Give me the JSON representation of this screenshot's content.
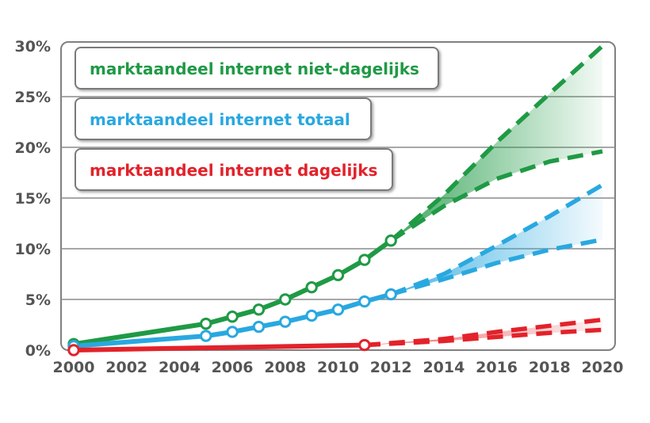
{
  "chart_data": {
    "type": "line",
    "title": "",
    "xlabel": "",
    "ylabel": "",
    "xlim": [
      2000,
      2020
    ],
    "ylim": [
      0,
      30
    ],
    "grid": true,
    "legend_position": "top-left",
    "x_ticks": [
      "2000",
      "2002",
      "2004",
      "2006",
      "2008",
      "2010",
      "2012",
      "2014",
      "2016",
      "2018",
      "2020"
    ],
    "y_ticks": [
      "0%",
      "5%",
      "10%",
      "15%",
      "20%",
      "25%",
      "30%"
    ],
    "series": [
      {
        "name": "marktaandeel internet niet-dagelijks",
        "color": "#1f9a45",
        "points": [
          [
            2000,
            0.6
          ],
          [
            2005,
            2.6
          ],
          [
            2006,
            3.3
          ],
          [
            2007,
            4.0
          ],
          [
            2008,
            5.0
          ],
          [
            2009,
            6.2
          ],
          [
            2010,
            7.4
          ],
          [
            2011,
            8.9
          ],
          [
            2012,
            10.8
          ]
        ],
        "projection_high": [
          [
            2012,
            10.8
          ],
          [
            2014,
            15.3
          ],
          [
            2016,
            20.5
          ],
          [
            2018,
            25.3
          ],
          [
            2020,
            30.0
          ]
        ],
        "projection_low": [
          [
            2012,
            10.8
          ],
          [
            2014,
            14.2
          ],
          [
            2016,
            16.9
          ],
          [
            2018,
            18.6
          ],
          [
            2020,
            19.6
          ]
        ]
      },
      {
        "name": "marktaandeel internet totaal",
        "color": "#29a8e0",
        "points": [
          [
            2000,
            0.4
          ],
          [
            2005,
            1.4
          ],
          [
            2006,
            1.8
          ],
          [
            2007,
            2.3
          ],
          [
            2008,
            2.8
          ],
          [
            2009,
            3.4
          ],
          [
            2010,
            4.0
          ],
          [
            2011,
            4.8
          ],
          [
            2012,
            5.5
          ]
        ],
        "projection_high": [
          [
            2012,
            5.5
          ],
          [
            2014,
            7.5
          ],
          [
            2016,
            10.3
          ],
          [
            2018,
            13.2
          ],
          [
            2020,
            16.3
          ]
        ],
        "projection_low": [
          [
            2012,
            5.5
          ],
          [
            2014,
            7.0
          ],
          [
            2016,
            8.6
          ],
          [
            2018,
            9.9
          ],
          [
            2020,
            10.9
          ]
        ]
      },
      {
        "name": "marktaandeel internet dagelijks",
        "color": "#e3222a",
        "points": [
          [
            2000,
            0.0
          ],
          [
            2011,
            0.5
          ]
        ],
        "projection_high": [
          [
            2011,
            0.5
          ],
          [
            2014,
            1.1
          ],
          [
            2016,
            1.8
          ],
          [
            2018,
            2.4
          ],
          [
            2020,
            3.0
          ]
        ],
        "projection_low": [
          [
            2011,
            0.5
          ],
          [
            2014,
            0.9
          ],
          [
            2016,
            1.3
          ],
          [
            2018,
            1.7
          ],
          [
            2020,
            2.0
          ]
        ]
      }
    ]
  }
}
